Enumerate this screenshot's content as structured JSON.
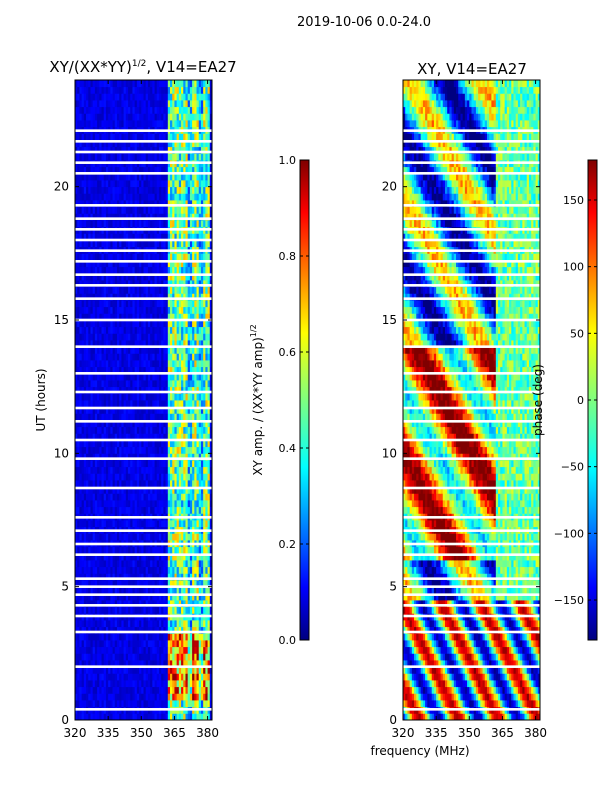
{
  "figure_title": "2019-10-06 0.0-24.0",
  "chart_data": [
    {
      "type": "heatmap",
      "title": "XY/(XX*YY)",
      "title_exp": "1/2",
      "title_suffix": ", V14=EA27",
      "xlabel": "",
      "ylabel": "UT (hours)",
      "xlim": [
        320,
        382
      ],
      "ylim": [
        0,
        24
      ],
      "xticks": [
        320,
        335,
        350,
        365,
        380
      ],
      "yticks": [
        0,
        5,
        10,
        15,
        20
      ],
      "colorbar": {
        "label": "XY amp. / (XX*YY amp)",
        "label_exp": "1/2",
        "range": [
          0.0,
          1.0
        ],
        "ticks": [
          "0.0",
          "0.2",
          "0.4",
          "0.6",
          "0.8",
          "1.0"
        ],
        "colormap": "jet"
      }
    },
    {
      "type": "heatmap",
      "title": "XY, V14=EA27",
      "xlabel": "frequency (MHz)",
      "ylabel": "",
      "xlim": [
        320,
        382
      ],
      "ylim": [
        0,
        24
      ],
      "xticks": [
        320,
        335,
        350,
        365,
        380
      ],
      "yticks": [
        0,
        5,
        10,
        15,
        20
      ],
      "colorbar": {
        "label": "phase (deg)",
        "range": [
          -180,
          180
        ],
        "ticks": [
          "-150",
          "-100",
          "-50",
          "0",
          "50",
          "100",
          "150"
        ],
        "colormap": "jet"
      }
    }
  ],
  "colors": {
    "jet": [
      "#00007f",
      "#0000ff",
      "#007fff",
      "#00ffff",
      "#7fff7f",
      "#ffff00",
      "#ff7f00",
      "#ff0000",
      "#7f0000"
    ]
  }
}
